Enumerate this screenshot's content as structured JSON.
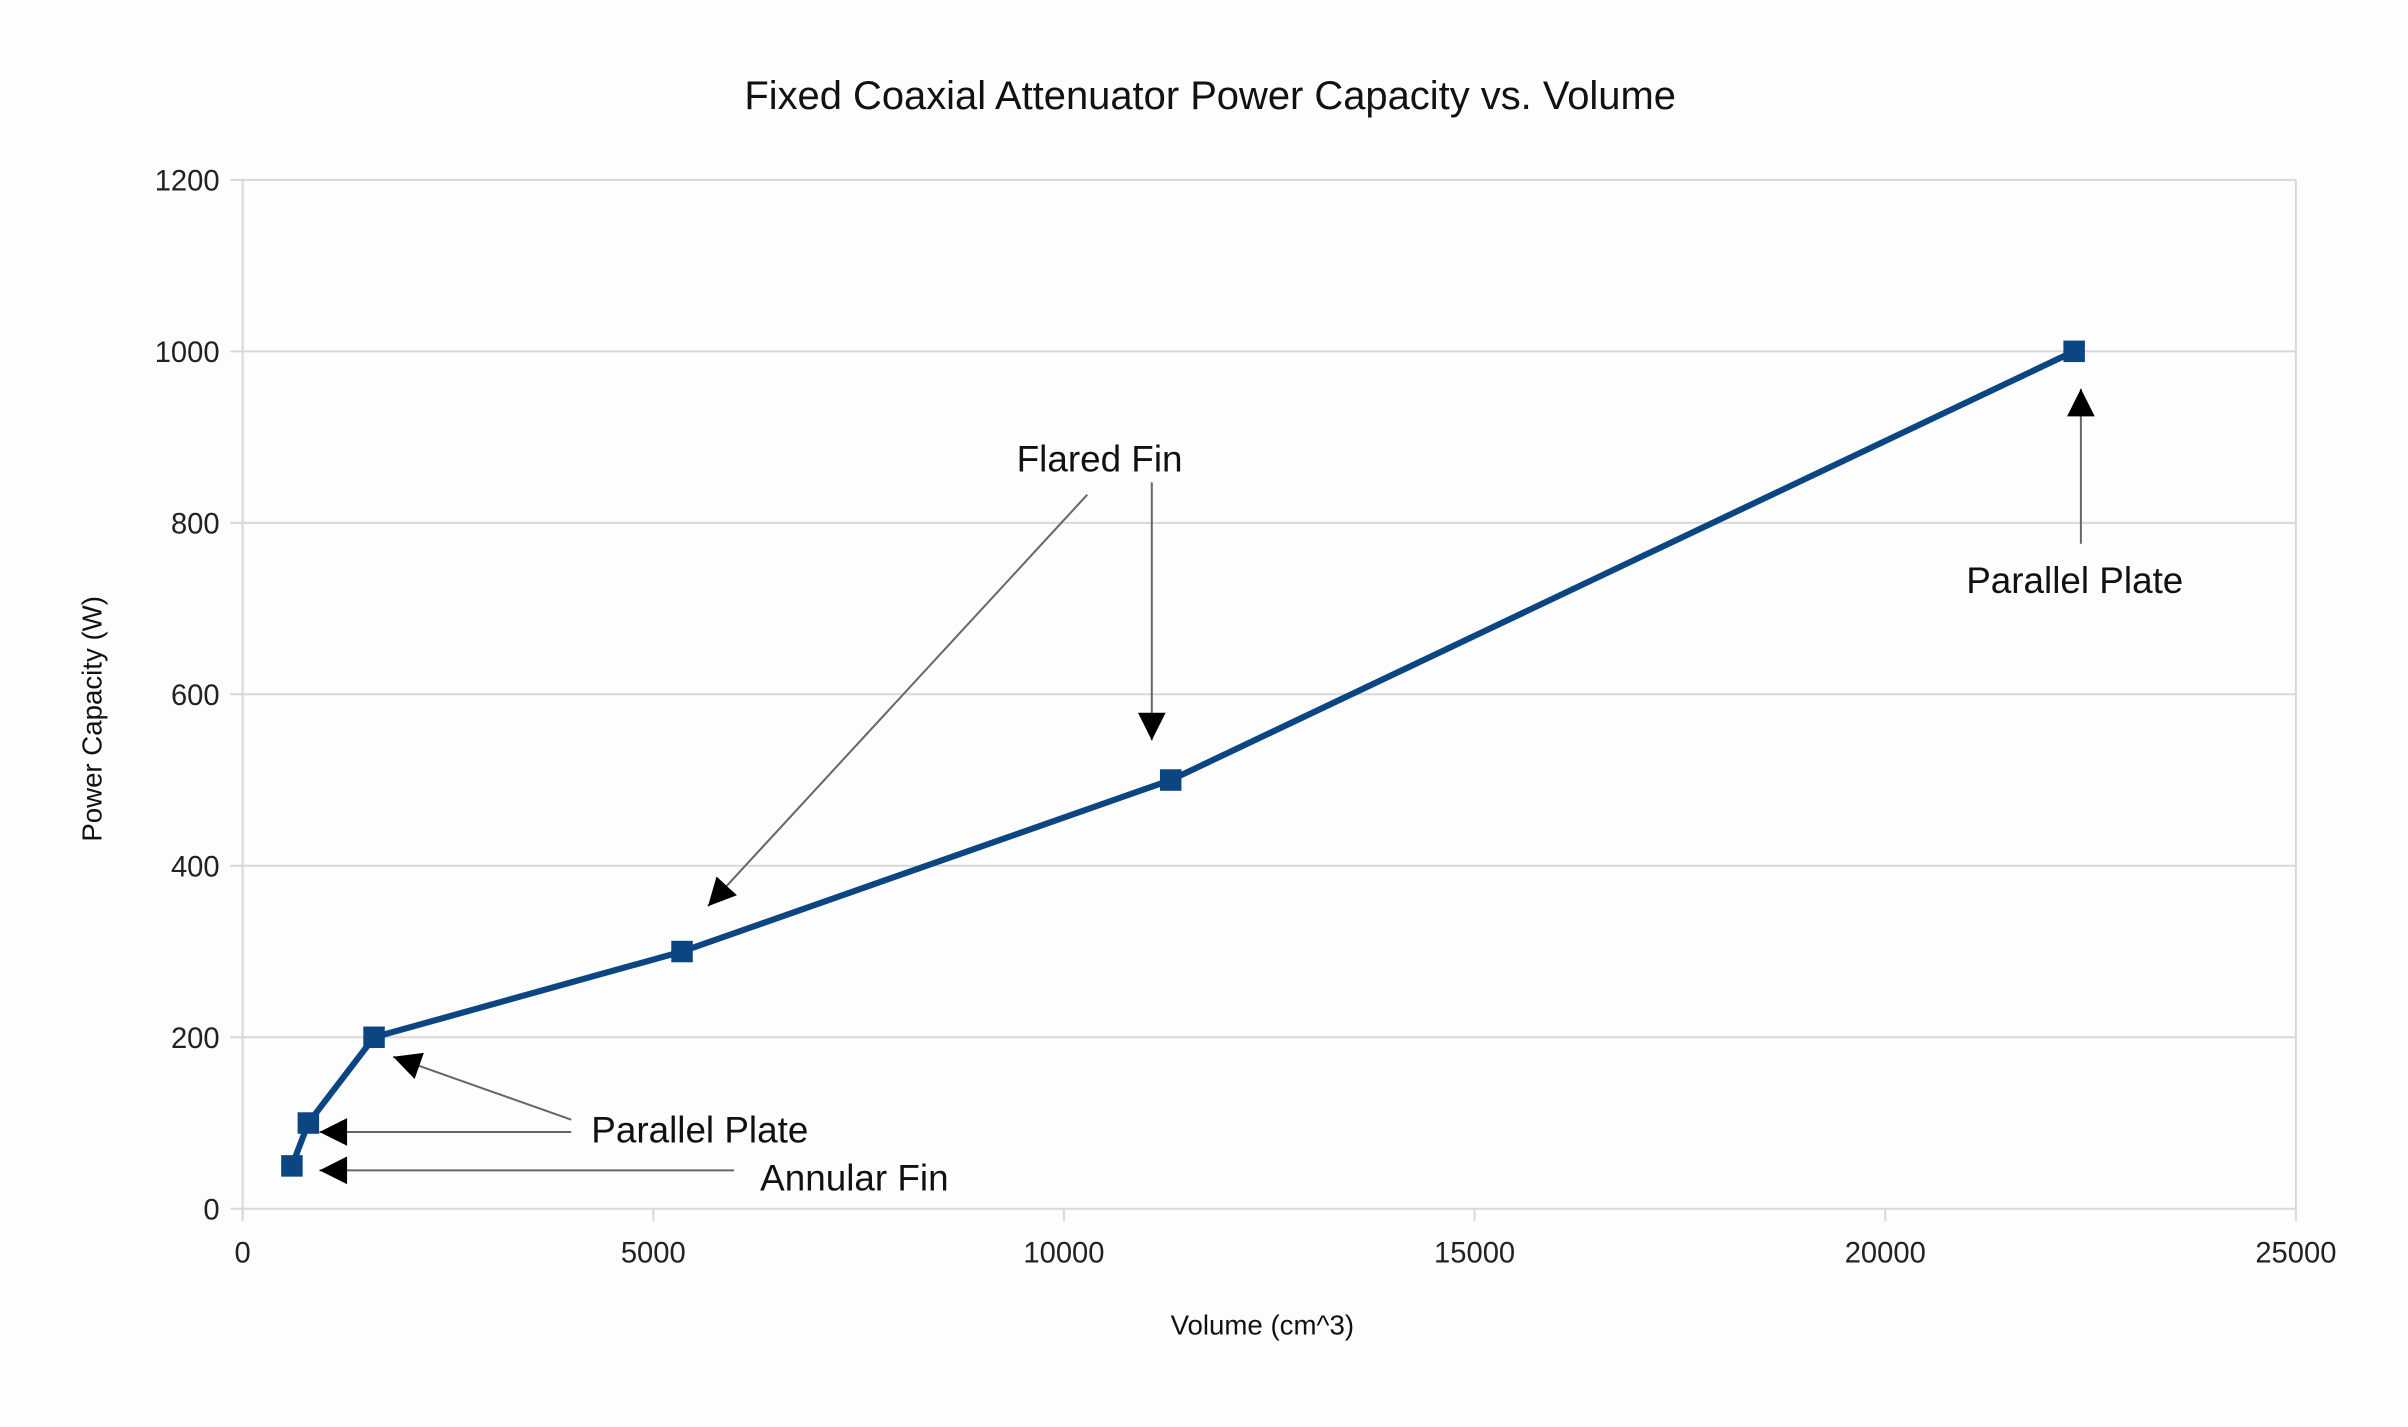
{
  "chart_data": {
    "type": "line",
    "title": "Fixed Coaxial Attenuator Power Capacity vs. Volume",
    "xlabel": "Volume (cm^3)",
    "ylabel": "Power Capacity (W)",
    "xlim": [
      0,
      25000
    ],
    "ylim": [
      0,
      1200
    ],
    "xticks": [
      "0",
      "5000",
      "10000",
      "15000",
      "20000",
      "25000"
    ],
    "yticks": [
      "0",
      "200",
      "400",
      "600",
      "800",
      "1000",
      "1200"
    ],
    "grid": "horizontal",
    "legend": "none",
    "series": [
      {
        "color": "#0b4582",
        "marker": "square",
        "points": [
          {
            "x": 600,
            "y": 50
          },
          {
            "x": 800,
            "y": 100
          },
          {
            "x": 1600,
            "y": 200
          },
          {
            "x": 5350,
            "y": 300
          },
          {
            "x": 11300,
            "y": 500
          },
          {
            "x": 22300,
            "y": 1000
          }
        ]
      }
    ],
    "annotations": [
      {
        "text": "Annular Fin",
        "targets": [
          {
            "x": 600,
            "y": 50
          }
        ]
      },
      {
        "text": "Parallel Plate",
        "targets": [
          {
            "x": 800,
            "y": 100
          },
          {
            "x": 1600,
            "y": 200
          }
        ]
      },
      {
        "text": "Flared Fin",
        "targets": [
          {
            "x": 5350,
            "y": 300
          },
          {
            "x": 11300,
            "y": 500
          }
        ]
      },
      {
        "text": "Parallel Plate",
        "targets": [
          {
            "x": 22300,
            "y": 1000
          }
        ]
      }
    ]
  }
}
